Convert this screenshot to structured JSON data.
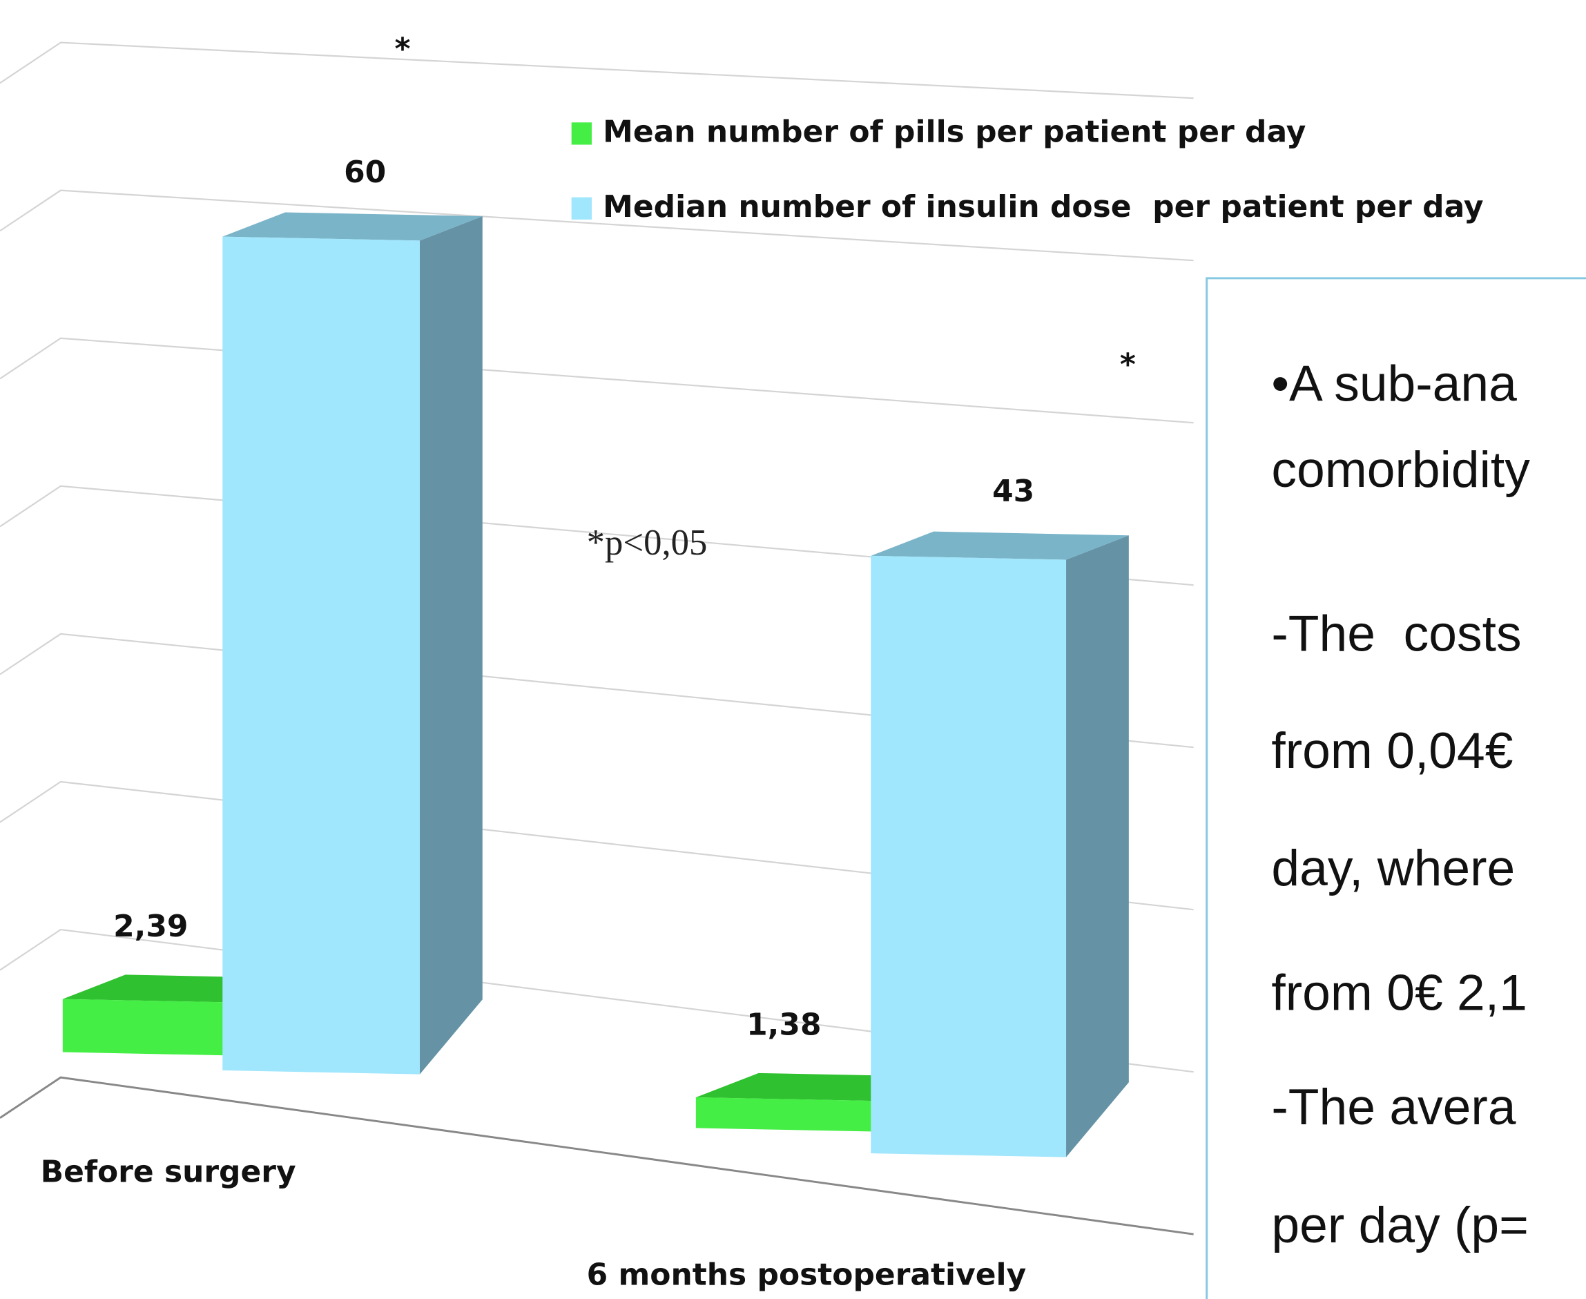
{
  "chart_data": {
    "type": "bar3d",
    "categories": [
      "Before surgery",
      "6 months postoperatively"
    ],
    "series": [
      {
        "name": "Mean number of pills per patient per day",
        "color": "#44ee44",
        "values": [
          2.39,
          1.38
        ],
        "value_labels": [
          "2,39",
          "1,38"
        ]
      },
      {
        "name": "Median number of insulin dose  per patient per day",
        "color": "#a0e6fc",
        "values": [
          60,
          43
        ]
      }
    ],
    "annotations": [
      "*",
      "*",
      "*p<0,05"
    ],
    "ylim": [
      0,
      70
    ],
    "yticks": [
      0,
      10,
      20,
      30,
      40,
      50,
      60,
      70
    ],
    "grid": true
  },
  "text_box": {
    "lines": [
      "•A sub-ana",
      "comorbidity",
      "-The  costs",
      "from 0,04€",
      "day, where",
      "from 0€ 2,1",
      "-The avera",
      "per day (p="
    ]
  }
}
